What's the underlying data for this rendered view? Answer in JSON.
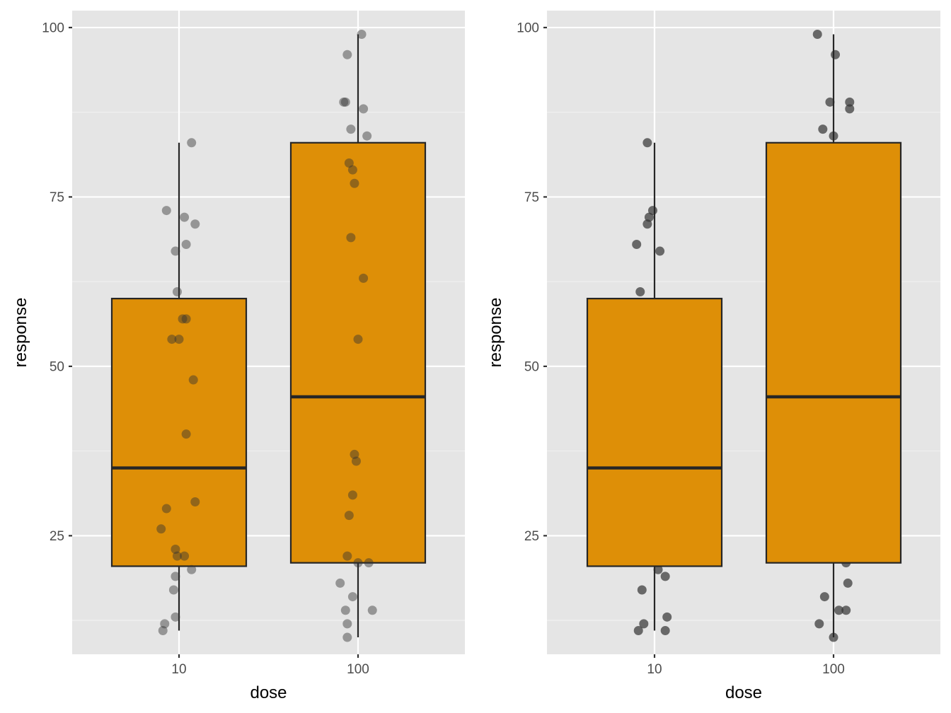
{
  "colors": {
    "panel_background": "#E5E5E5",
    "grid_major": "#FFFFFF",
    "grid_minor": "#F2F2F2",
    "box_fill": "#DE8F07",
    "box_line": "#262626",
    "point": "#333333",
    "tick_text": "#4D4D4D"
  },
  "chart_data": [
    {
      "type": "boxplot",
      "title": "",
      "xlabel": "dose",
      "ylabel": "response",
      "categories": [
        "10",
        "100"
      ],
      "ylim": [
        7.5,
        102.5
      ],
      "yticks": [
        25,
        50,
        75,
        100
      ],
      "ytick_labels": [
        "25",
        "50",
        "75",
        "100"
      ],
      "grid": true,
      "point_style": "translucent",
      "boxes": [
        {
          "category": "10",
          "whisker_low": 11,
          "q1": 20.5,
          "median": 35,
          "q3": 60,
          "whisker_high": 83
        },
        {
          "category": "100",
          "whisker_low": 10,
          "q1": 21,
          "median": 45.5,
          "q3": 83,
          "whisker_high": 99
        }
      ],
      "points": [
        {
          "category": "10",
          "jitter": -0.09,
          "y": 11
        },
        {
          "category": "10",
          "jitter": -0.08,
          "y": 12
        },
        {
          "category": "10",
          "jitter": -0.02,
          "y": 13
        },
        {
          "category": "10",
          "jitter": -0.03,
          "y": 17
        },
        {
          "category": "10",
          "jitter": -0.02,
          "y": 19
        },
        {
          "category": "10",
          "jitter": 0.07,
          "y": 20
        },
        {
          "category": "10",
          "jitter": 0.03,
          "y": 22
        },
        {
          "category": "10",
          "jitter": -0.01,
          "y": 22
        },
        {
          "category": "10",
          "jitter": -0.02,
          "y": 23
        },
        {
          "category": "10",
          "jitter": -0.1,
          "y": 26
        },
        {
          "category": "10",
          "jitter": -0.07,
          "y": 29
        },
        {
          "category": "10",
          "jitter": 0.09,
          "y": 30
        },
        {
          "category": "10",
          "jitter": 0.04,
          "y": 40
        },
        {
          "category": "10",
          "jitter": 0.08,
          "y": 48
        },
        {
          "category": "10",
          "jitter": -0.04,
          "y": 54
        },
        {
          "category": "10",
          "jitter": 0.0,
          "y": 54
        },
        {
          "category": "10",
          "jitter": 0.02,
          "y": 57
        },
        {
          "category": "10",
          "jitter": 0.04,
          "y": 57
        },
        {
          "category": "10",
          "jitter": -0.01,
          "y": 61
        },
        {
          "category": "10",
          "jitter": -0.02,
          "y": 67
        },
        {
          "category": "10",
          "jitter": 0.04,
          "y": 68
        },
        {
          "category": "10",
          "jitter": 0.09,
          "y": 71
        },
        {
          "category": "10",
          "jitter": 0.03,
          "y": 72
        },
        {
          "category": "10",
          "jitter": -0.07,
          "y": 73
        },
        {
          "category": "10",
          "jitter": 0.07,
          "y": 83
        },
        {
          "category": "100",
          "jitter": -0.06,
          "y": 10
        },
        {
          "category": "100",
          "jitter": -0.06,
          "y": 12
        },
        {
          "category": "100",
          "jitter": -0.07,
          "y": 14
        },
        {
          "category": "100",
          "jitter": 0.08,
          "y": 14
        },
        {
          "category": "100",
          "jitter": -0.03,
          "y": 16
        },
        {
          "category": "100",
          "jitter": -0.1,
          "y": 18
        },
        {
          "category": "100",
          "jitter": 0.0,
          "y": 21
        },
        {
          "category": "100",
          "jitter": 0.06,
          "y": 21
        },
        {
          "category": "100",
          "jitter": -0.06,
          "y": 22
        },
        {
          "category": "100",
          "jitter": -0.05,
          "y": 28
        },
        {
          "category": "100",
          "jitter": -0.03,
          "y": 31
        },
        {
          "category": "100",
          "jitter": -0.01,
          "y": 36
        },
        {
          "category": "100",
          "jitter": -0.02,
          "y": 37
        },
        {
          "category": "100",
          "jitter": 0.0,
          "y": 54
        },
        {
          "category": "100",
          "jitter": 0.03,
          "y": 63
        },
        {
          "category": "100",
          "jitter": -0.04,
          "y": 69
        },
        {
          "category": "100",
          "jitter": -0.02,
          "y": 77
        },
        {
          "category": "100",
          "jitter": -0.03,
          "y": 79
        },
        {
          "category": "100",
          "jitter": -0.05,
          "y": 80
        },
        {
          "category": "100",
          "jitter": 0.05,
          "y": 84
        },
        {
          "category": "100",
          "jitter": -0.04,
          "y": 85
        },
        {
          "category": "100",
          "jitter": 0.03,
          "y": 88
        },
        {
          "category": "100",
          "jitter": -0.08,
          "y": 89
        },
        {
          "category": "100",
          "jitter": -0.07,
          "y": 89
        },
        {
          "category": "100",
          "jitter": -0.06,
          "y": 96
        },
        {
          "category": "100",
          "jitter": 0.02,
          "y": 99
        }
      ]
    },
    {
      "type": "boxplot",
      "title": "",
      "xlabel": "dose",
      "ylabel": "response",
      "categories": [
        "10",
        "100"
      ],
      "ylim": [
        7.5,
        102.5
      ],
      "yticks": [
        25,
        50,
        75,
        100
      ],
      "ytick_labels": [
        "25",
        "50",
        "75",
        "100"
      ],
      "grid": true,
      "point_style": "opaque, drawn beneath boxes",
      "boxes": [
        {
          "category": "10",
          "whisker_low": 11,
          "q1": 20.5,
          "median": 35,
          "q3": 60,
          "whisker_high": 83
        },
        {
          "category": "100",
          "whisker_low": 10,
          "q1": 21,
          "median": 45.5,
          "q3": 83,
          "whisker_high": 99
        }
      ],
      "points": [
        {
          "category": "10",
          "jitter": -0.09,
          "y": 11
        },
        {
          "category": "10",
          "jitter": 0.06,
          "y": 11
        },
        {
          "category": "10",
          "jitter": -0.06,
          "y": 12
        },
        {
          "category": "10",
          "jitter": 0.07,
          "y": 13
        },
        {
          "category": "10",
          "jitter": -0.07,
          "y": 17
        },
        {
          "category": "10",
          "jitter": 0.06,
          "y": 19
        },
        {
          "category": "10",
          "jitter": 0.02,
          "y": 20
        },
        {
          "category": "10",
          "jitter": -0.08,
          "y": 61
        },
        {
          "category": "10",
          "jitter": 0.03,
          "y": 67
        },
        {
          "category": "10",
          "jitter": -0.1,
          "y": 68
        },
        {
          "category": "10",
          "jitter": -0.04,
          "y": 71
        },
        {
          "category": "10",
          "jitter": -0.03,
          "y": 72
        },
        {
          "category": "10",
          "jitter": -0.01,
          "y": 73
        },
        {
          "category": "10",
          "jitter": -0.04,
          "y": 83
        },
        {
          "category": "100",
          "jitter": 0.0,
          "y": 10
        },
        {
          "category": "100",
          "jitter": -0.08,
          "y": 12
        },
        {
          "category": "100",
          "jitter": 0.03,
          "y": 14
        },
        {
          "category": "100",
          "jitter": 0.07,
          "y": 14
        },
        {
          "category": "100",
          "jitter": -0.05,
          "y": 16
        },
        {
          "category": "100",
          "jitter": 0.08,
          "y": 18
        },
        {
          "category": "100",
          "jitter": 0.07,
          "y": 21
        },
        {
          "category": "100",
          "jitter": 0.0,
          "y": 84
        },
        {
          "category": "100",
          "jitter": -0.06,
          "y": 85
        },
        {
          "category": "100",
          "jitter": 0.09,
          "y": 88
        },
        {
          "category": "100",
          "jitter": 0.09,
          "y": 89
        },
        {
          "category": "100",
          "jitter": -0.02,
          "y": 89
        },
        {
          "category": "100",
          "jitter": 0.01,
          "y": 96
        },
        {
          "category": "100",
          "jitter": -0.09,
          "y": 99
        }
      ]
    }
  ]
}
